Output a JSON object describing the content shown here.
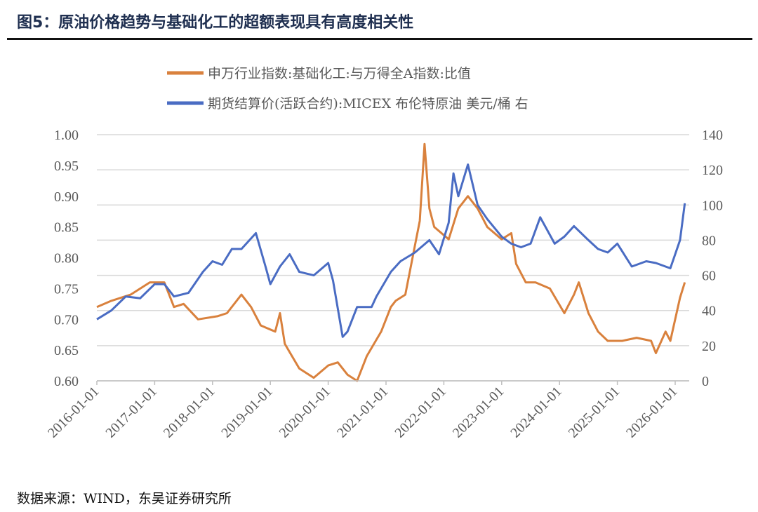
{
  "title": "图5：原油价格趋势与基础化工的超额表现具有高度相关性",
  "source": "数据来源：WIND，东吴证券研究所",
  "chart_data": {
    "type": "line",
    "title": "",
    "legend_position": "top",
    "grid": true,
    "left_axis": {
      "ylim": [
        0.6,
        1.0
      ],
      "ticks": [
        "0.60",
        "0.65",
        "0.70",
        "0.75",
        "0.80",
        "0.85",
        "0.90",
        "0.95",
        "1.00"
      ]
    },
    "right_axis": {
      "ylim": [
        0,
        140
      ],
      "ticks": [
        "0",
        "20",
        "40",
        "60",
        "80",
        "100",
        "120",
        "140"
      ]
    },
    "x_ticks": [
      "2016-01-01",
      "2017-01-01",
      "2018-01-01",
      "2019-01-01",
      "2020-01-01",
      "2021-01-01",
      "2022-01-01",
      "2023-01-01",
      "2024-01-01",
      "2025-01-01",
      "2026-01-01"
    ],
    "series": [
      {
        "name": "申万行业指数:基础化工:与万得全A指数:比值",
        "axis": "left",
        "color": "#d9813d",
        "x": [
          "2016-01",
          "2016-04",
          "2016-08",
          "2016-12",
          "2017-03",
          "2017-05",
          "2017-07",
          "2017-10",
          "2018-02",
          "2018-04",
          "2018-07",
          "2018-09",
          "2018-11",
          "2019-02",
          "2019-03",
          "2019-04",
          "2019-07",
          "2019-10",
          "2020-01",
          "2020-03",
          "2020-05",
          "2020-07",
          "2020-09",
          "2020-12",
          "2021-02",
          "2021-03",
          "2021-05",
          "2021-07",
          "2021-08",
          "2021-09",
          "2021-10",
          "2021-11",
          "2022-02",
          "2022-04",
          "2022-06",
          "2022-08",
          "2022-10",
          "2023-01",
          "2023-03",
          "2023-04",
          "2023-06",
          "2023-08",
          "2023-11",
          "2024-02",
          "2024-04",
          "2024-05",
          "2024-07",
          "2024-09",
          "2024-11",
          "2025-02",
          "2025-05",
          "2025-08",
          "2025-09",
          "2025-11",
          "2025-12",
          "2026-02",
          "2026-03"
        ],
        "y": [
          0.72,
          0.73,
          0.74,
          0.76,
          0.76,
          0.72,
          0.725,
          0.7,
          0.705,
          0.71,
          0.74,
          0.72,
          0.69,
          0.68,
          0.71,
          0.66,
          0.62,
          0.605,
          0.625,
          0.63,
          0.61,
          0.6,
          0.64,
          0.68,
          0.72,
          0.73,
          0.74,
          0.82,
          0.86,
          0.985,
          0.88,
          0.85,
          0.83,
          0.88,
          0.9,
          0.88,
          0.85,
          0.83,
          0.84,
          0.79,
          0.76,
          0.76,
          0.75,
          0.71,
          0.74,
          0.76,
          0.71,
          0.68,
          0.665,
          0.665,
          0.67,
          0.665,
          0.645,
          0.68,
          0.665,
          0.735,
          0.76
        ]
      },
      {
        "name": "期货结算价(活跃合约):MICEX 布伦特原油 美元/桶 右",
        "axis": "right",
        "color": "#4a6cc3",
        "x": [
          "2016-01",
          "2016-04",
          "2016-07",
          "2016-10",
          "2017-01",
          "2017-03",
          "2017-05",
          "2017-08",
          "2017-11",
          "2018-01",
          "2018-03",
          "2018-05",
          "2018-07",
          "2018-10",
          "2018-12",
          "2019-01",
          "2019-03",
          "2019-05",
          "2019-07",
          "2019-10",
          "2020-01",
          "2020-02",
          "2020-04",
          "2020-05",
          "2020-07",
          "2020-10",
          "2020-11",
          "2021-02",
          "2021-04",
          "2021-07",
          "2021-10",
          "2021-12",
          "2022-02",
          "2022-03",
          "2022-04",
          "2022-06",
          "2022-08",
          "2022-10",
          "2023-01",
          "2023-03",
          "2023-05",
          "2023-07",
          "2023-09",
          "2023-12",
          "2024-02",
          "2024-04",
          "2024-07",
          "2024-09",
          "2024-11",
          "2025-01",
          "2025-04",
          "2025-07",
          "2025-09",
          "2025-12",
          "2026-01",
          "2026-02",
          "2026-03"
        ],
        "y": [
          35,
          40,
          48,
          47,
          55,
          55,
          48,
          50,
          62,
          68,
          66,
          75,
          75,
          84,
          65,
          55,
          65,
          72,
          62,
          60,
          67,
          57,
          25,
          28,
          42,
          42,
          48,
          62,
          68,
          73,
          80,
          72,
          90,
          118,
          105,
          123,
          100,
          92,
          82,
          78,
          76,
          78,
          93,
          78,
          82,
          88,
          80,
          75,
          73,
          78,
          65,
          68,
          67,
          64,
          72,
          80,
          101
        ]
      }
    ]
  }
}
